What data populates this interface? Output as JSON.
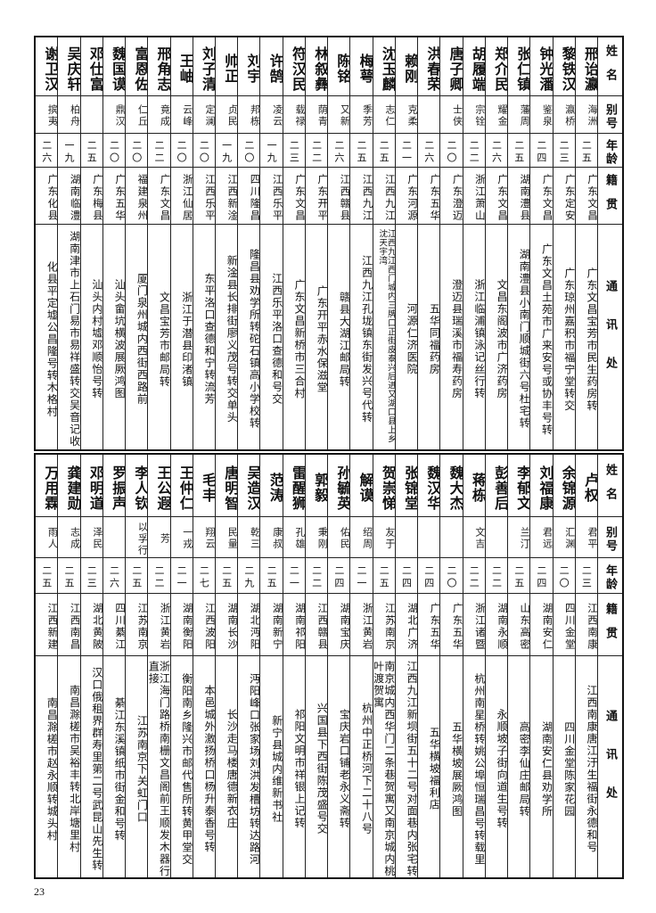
{
  "headers": {
    "name": "姓名",
    "alias": "别号",
    "age": "年龄",
    "native": "籍贯",
    "address": "通讯处"
  },
  "top_rows": [
    {
      "name": "邢诒瀛",
      "alias": "海洲",
      "age": "二五",
      "native": "广东文昌",
      "address": "广东文昌宝芳市民生药房转"
    },
    {
      "name": "黎铁汉",
      "alias": "瀛桥",
      "age": "二三",
      "native": "广东定安",
      "address": "广东琼州嘉积市福宁堂转交"
    },
    {
      "name": "钟光潘",
      "alias": "鉴泉",
      "age": "二四",
      "native": "广东文昌",
      "address": "广东文昌土苑市广来安号或协丰号转"
    },
    {
      "name": "张仁镇",
      "alias": "藩周",
      "age": "二五",
      "native": "湖南澧县",
      "address": "湖南澧县小南门顺城街六号杜宅转"
    },
    {
      "name": "郑介民",
      "alias": "耀金",
      "age": "二六",
      "native": "广东文昌",
      "address": "文昌东阁波市广济药房"
    },
    {
      "name": "胡履端",
      "alias": "宗铨",
      "age": "二二",
      "native": "浙江萧山",
      "address": "浙江临浦镇泳记丝行转"
    },
    {
      "name": "唐子卿",
      "alias": "士侠",
      "age": "二〇",
      "native": "广东澄迈",
      "address": "澄迈县瑞溪市福寿药房"
    },
    {
      "name": "洪春荣",
      "alias": "",
      "age": "二六",
      "native": "广东五华",
      "address": "五华同福药房"
    },
    {
      "name": "赖刚",
      "alias": "克柔",
      "age": "二一",
      "native": "广东河源",
      "address": "河源仁济医院"
    },
    {
      "name": "沈玉麟",
      "alias": "志仁",
      "age": "二五",
      "native": "江西九江",
      "address": "江西九江西门城内三牌口正街皮泰兴后进又湖口县上乡沈天宇湾"
    },
    {
      "name": "梅萼",
      "alias": "季芳",
      "age": "二五",
      "native": "江西九江",
      "address": "江西九江孔垅镇东街发兴号代转"
    },
    {
      "name": "陈铭",
      "alias": "又新",
      "age": "二六",
      "native": "江西赣县",
      "address": "赣县大湖江邮局转"
    },
    {
      "name": "林叙彝",
      "alias": "荫青",
      "age": "二二",
      "native": "广东开平",
      "address": "广东开平赤水保滋堂"
    },
    {
      "name": "符汉民",
      "alias": "载禄",
      "age": "二三",
      "native": "广东文昌",
      "address": "广东文昌新桥市三合村"
    },
    {
      "name": "许鹄",
      "alias": "凌云",
      "age": "一九",
      "native": "江西乐平",
      "address": "江西乐平洛口查德和号交"
    },
    {
      "name": "刘宇",
      "alias": "邦栋",
      "age": "二〇",
      "native": "四川隆昌",
      "address": "隆昌县劝学所转砣石镇高小学校转"
    },
    {
      "name": "帅正",
      "alias": "贞民",
      "age": "一九",
      "native": "江西新淦",
      "address": "新淦县长排街廖义茂号转交单头"
    },
    {
      "name": "刘子清",
      "alias": "定澜",
      "age": "二〇",
      "native": "江西乐平",
      "address": "东平洛口查德和宁转流芳"
    },
    {
      "name": "王岫",
      "alias": "云峰",
      "age": "二〇",
      "native": "浙江仙居",
      "address": "浙江于潜县印渚镇"
    },
    {
      "name": "邢角志",
      "alias": "竟成",
      "age": "二二",
      "native": "广东文昌",
      "address": "文昌宝芳市邮局转"
    },
    {
      "name": "富恩佐",
      "alias": "仁丘",
      "age": "二〇",
      "native": "福建泉州",
      "address": "厦门泉州城内西街西路前"
    },
    {
      "name": "魏国谟",
      "alias": "鼎汉",
      "age": "二〇",
      "native": "广东五华",
      "address": "汕头畲坑横波展厥鸿图"
    },
    {
      "name": "邓仕富",
      "alias": "",
      "age": "二五",
      "native": "广东梅县",
      "address": "汕头内村墟邓顺怡号转"
    },
    {
      "name": "吴庆轩",
      "alias": "柏舟",
      "age": "一九",
      "native": "湖南临澧",
      "address": "湖南津市上石门易市易祥盛转交吴音记收"
    },
    {
      "name": "谢卫汉",
      "alias": "摈夷",
      "age": "二六",
      "native": "广东化县",
      "address": "化县平定墟公昌隆号转木格村"
    }
  ],
  "bottom_rows": [
    {
      "name": "卢权",
      "alias": "君平",
      "age": "二三",
      "native": "江西南康",
      "address": "江西南康唐江汙生福街永德和号"
    },
    {
      "name": "余锦源",
      "alias": "汇渊",
      "age": "二〇",
      "native": "四川金堂",
      "address": "四川金堂陈家花园"
    },
    {
      "name": "刘福康",
      "alias": "君远",
      "age": "二四",
      "native": "湖南安仁",
      "address": "湖南安仁县劝学所"
    },
    {
      "name": "李郁文",
      "alias": "兰汀",
      "age": "二五",
      "native": "山东高密",
      "address": "高密李仙庄邮局转"
    },
    {
      "name": "彭善后",
      "alias": "",
      "age": "二二",
      "native": "湖南永顺",
      "address": "永顺坡子街向道生号转"
    },
    {
      "name": "蒋栋",
      "alias": "文吉",
      "age": "二二",
      "native": "浙江诸暨",
      "address": "杭州南星桥转姚公埠恒瑞昌号转载里"
    },
    {
      "name": "魏大杰",
      "alias": "",
      "age": "二〇",
      "native": "广东五华",
      "address": "五华横坡展厥鸿图"
    },
    {
      "name": "魏汉华",
      "alias": "",
      "age": "二四",
      "native": "广东五华",
      "address": "五华横坡福利店"
    },
    {
      "name": "张锦堂",
      "alias": "",
      "age": "二四",
      "native": "湖北广济",
      "address": "江西九江新坝街五十二号对面巷内张宅转"
    },
    {
      "name": "贺崇悌",
      "alias": "友于",
      "age": "二五",
      "native": "江苏南京",
      "address": "南京城内西华门二条巷贺寓又南京城内桃叶渡贺寓"
    },
    {
      "name": "解谟",
      "alias": "绍周",
      "age": "二一",
      "native": "浙江黄岩",
      "address": "杭州中正桥河下二十八号"
    },
    {
      "name": "孙毓英",
      "alias": "佑民",
      "age": "二四",
      "native": "湖南宝庆",
      "address": "宝庆岩口铺老永义斋转"
    },
    {
      "name": "郭毅",
      "alias": "秉刚",
      "age": "二二",
      "native": "江西赣县",
      "address": "兴国县下西街陈茂盛号交"
    },
    {
      "name": "雷醒狮",
      "alias": "孔雄",
      "age": "二一",
      "native": "湖南祁阳",
      "address": "祁阳文明市祥银上记转"
    },
    {
      "name": "范涛",
      "alias": "康叔",
      "age": "二五",
      "native": "湖南新宁",
      "address": "新宁县城内维新书社"
    },
    {
      "name": "吴造汉",
      "alias": "乾三",
      "age": "二九",
      "native": "湖北沔阳",
      "address": "沔阳峰口张家场刘洪发槽坊转达路河"
    },
    {
      "name": "唐明智",
      "alias": "民量",
      "age": "二五",
      "native": "湖南长沙",
      "address": "长沙走马楼唐德新衣庄"
    },
    {
      "name": "毛丰",
      "alias": "翔云",
      "age": "二七",
      "native": "江西波阳",
      "address": "本邑城外激扬桥口杨升泰香号转"
    },
    {
      "name": "王仲仁",
      "alias": "一戎",
      "age": "二一",
      "native": "湖南衡阳",
      "address": "衡阳南乡隆兴市邮代售所转黄甲堂交"
    },
    {
      "name": "王公遐",
      "alias": "芳",
      "age": "二二",
      "native": "浙江黄岩",
      "address": "浙江海门路桥南栅文昌阁前王顺发木器行直接"
    },
    {
      "name": "李人钦",
      "alias": "以孚行",
      "age": "二五",
      "native": "江苏南京",
      "address": "江苏南京下关虹门口"
    },
    {
      "name": "罗振声",
      "alias": "",
      "age": "二六",
      "native": "四川綦江",
      "address": "綦江东溪镇纸市街金和号转"
    },
    {
      "name": "邓明道",
      "alias": "泽民",
      "age": "二三",
      "native": "湖北黄陂",
      "address": "汉口俄租界群寿里第二号武昆山先生转"
    },
    {
      "name": "龚建勋",
      "alias": "志成",
      "age": "二五",
      "native": "江西南昌",
      "address": "南昌滁槎市吴裕丰转北岸塘里村"
    },
    {
      "name": "万用霖",
      "alias": "雨人",
      "age": "二五",
      "native": "江西新建",
      "address": "南昌滁槎市赵永顺转城头村"
    }
  ],
  "page_number": "23"
}
